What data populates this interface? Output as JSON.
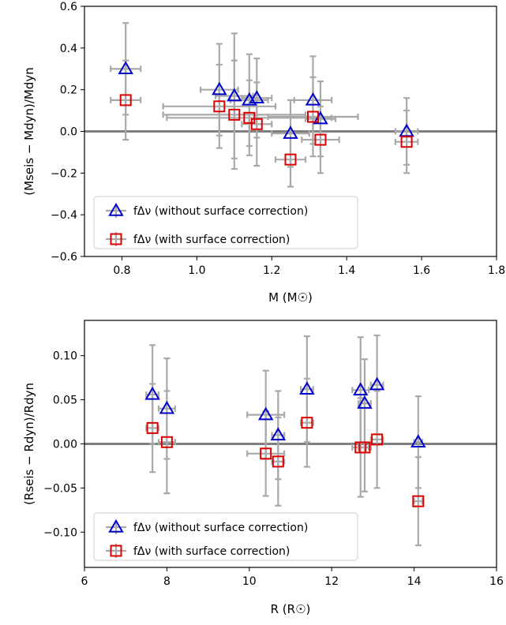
{
  "chart_data": [
    {
      "type": "scatter",
      "xlabel": "M (M☉)",
      "ylabel": "(Mseis − Mdyn)/Mdyn",
      "xlim": [
        0.7,
        1.8
      ],
      "ylim": [
        -0.6,
        0.6
      ],
      "xticks": [
        "0.8",
        "1.0",
        "1.2",
        "1.4",
        "1.6",
        "1.8"
      ],
      "yticks": [
        "−0.6",
        "−0.4",
        "−0.2",
        "0.0",
        "0.2",
        "0.4",
        "0.6"
      ],
      "xtick_values": [
        0.8,
        1.0,
        1.2,
        1.4,
        1.6,
        1.8
      ],
      "ytick_values": [
        -0.6,
        -0.4,
        -0.2,
        0.0,
        0.2,
        0.4,
        0.6
      ],
      "reference_line_y": 0.0,
      "grid": false,
      "legend_position": "bottom-left",
      "series": [
        {
          "name": "fΔν (without surface correction)",
          "marker": "triangle",
          "color": "#0000cc",
          "points": [
            {
              "x": 0.81,
              "y": 0.3,
              "xerr": 0.04,
              "yerr": 0.22
            },
            {
              "x": 1.06,
              "y": 0.2,
              "xerr": 0.05,
              "yerr": 0.22
            },
            {
              "x": 1.1,
              "y": 0.17,
              "xerr": 0.05,
              "yerr": 0.3
            },
            {
              "x": 1.14,
              "y": 0.15,
              "xerr": 0.05,
              "yerr": 0.22
            },
            {
              "x": 1.16,
              "y": 0.16,
              "xerr": 0.04,
              "yerr": 0.19
            },
            {
              "x": 1.25,
              "y": -0.01,
              "xerr": 0.05,
              "yerr": 0.16
            },
            {
              "x": 1.31,
              "y": 0.15,
              "xerr": 0.05,
              "yerr": 0.21
            },
            {
              "x": 1.33,
              "y": 0.06,
              "xerr": 0.04,
              "yerr": 0.18
            },
            {
              "x": 1.56,
              "y": 0.0,
              "xerr": 0.03,
              "yerr": 0.16
            }
          ]
        },
        {
          "name": "fΔν (with surface correction)",
          "marker": "square",
          "color": "#dd0000",
          "points": [
            {
              "x": 0.81,
              "y": 0.15,
              "xerr": 0.04,
              "yerr": 0.19
            },
            {
              "x": 1.06,
              "y": 0.12,
              "xerr": 0.15,
              "yerr": 0.2
            },
            {
              "x": 1.1,
              "y": 0.08,
              "xerr": 0.19,
              "yerr": 0.26
            },
            {
              "x": 1.14,
              "y": 0.065,
              "xerr": 0.22,
              "yerr": 0.18
            },
            {
              "x": 1.16,
              "y": 0.035,
              "xerr": 0.04,
              "yerr": 0.2
            },
            {
              "x": 1.25,
              "y": -0.135,
              "xerr": 0.04,
              "yerr": 0.13
            },
            {
              "x": 1.31,
              "y": 0.07,
              "xerr": 0.12,
              "yerr": 0.19
            },
            {
              "x": 1.33,
              "y": -0.04,
              "xerr": 0.05,
              "yerr": 0.16
            },
            {
              "x": 1.56,
              "y": -0.05,
              "xerr": 0.03,
              "yerr": 0.15
            }
          ]
        }
      ]
    },
    {
      "type": "scatter",
      "xlabel": "R (R☉)",
      "ylabel": "(Rseis − Rdyn)/Rdyn",
      "xlim": [
        6,
        16
      ],
      "ylim": [
        -0.14,
        0.14
      ],
      "xticks": [
        "6",
        "8",
        "10",
        "12",
        "14",
        "16"
      ],
      "yticks": [
        "−0.10",
        "−0.05",
        "0.00",
        "0.05",
        "0.10"
      ],
      "xtick_values": [
        6,
        8,
        10,
        12,
        14,
        16
      ],
      "ytick_values": [
        -0.1,
        -0.05,
        0.0,
        0.05,
        0.1
      ],
      "reference_line_y": 0.0,
      "grid": false,
      "legend_position": "bottom-left",
      "series": [
        {
          "name": "fΔν (without surface correction)",
          "marker": "triangle",
          "color": "#0000cc",
          "points": [
            {
              "x": 7.65,
              "y": 0.056,
              "xerr": 0.15,
              "yerr": 0.056
            },
            {
              "x": 8.0,
              "y": 0.04,
              "xerr": 0.2,
              "yerr": 0.057
            },
            {
              "x": 10.4,
              "y": 0.033,
              "xerr": 0.45,
              "yerr": 0.05
            },
            {
              "x": 10.7,
              "y": 0.01,
              "xerr": 0.15,
              "yerr": 0.05
            },
            {
              "x": 11.4,
              "y": 0.062,
              "xerr": 0.15,
              "yerr": 0.06
            },
            {
              "x": 12.7,
              "y": 0.061,
              "xerr": 0.2,
              "yerr": 0.06
            },
            {
              "x": 12.8,
              "y": 0.046,
              "xerr": 0.15,
              "yerr": 0.05
            },
            {
              "x": 13.1,
              "y": 0.067,
              "xerr": 0.15,
              "yerr": 0.056
            },
            {
              "x": 14.1,
              "y": 0.002,
              "xerr": 0.1,
              "yerr": 0.052
            }
          ]
        },
        {
          "name": "fΔν (with surface correction)",
          "marker": "square",
          "color": "#dd0000",
          "points": [
            {
              "x": 7.65,
              "y": 0.018,
              "xerr": 0.15,
              "yerr": 0.05
            },
            {
              "x": 8.0,
              "y": 0.002,
              "xerr": 0.2,
              "yerr": 0.058
            },
            {
              "x": 10.4,
              "y": -0.011,
              "xerr": 0.45,
              "yerr": 0.048
            },
            {
              "x": 10.7,
              "y": -0.02,
              "xerr": 0.15,
              "yerr": 0.05
            },
            {
              "x": 11.4,
              "y": 0.024,
              "xerr": 0.15,
              "yerr": 0.05
            },
            {
              "x": 12.7,
              "y": -0.004,
              "xerr": 0.2,
              "yerr": 0.056
            },
            {
              "x": 12.8,
              "y": -0.004,
              "xerr": 0.15,
              "yerr": 0.05
            },
            {
              "x": 13.1,
              "y": 0.005,
              "xerr": 0.15,
              "yerr": 0.055
            },
            {
              "x": 14.1,
              "y": -0.065,
              "xerr": 0.1,
              "yerr": 0.05
            }
          ]
        }
      ]
    }
  ]
}
